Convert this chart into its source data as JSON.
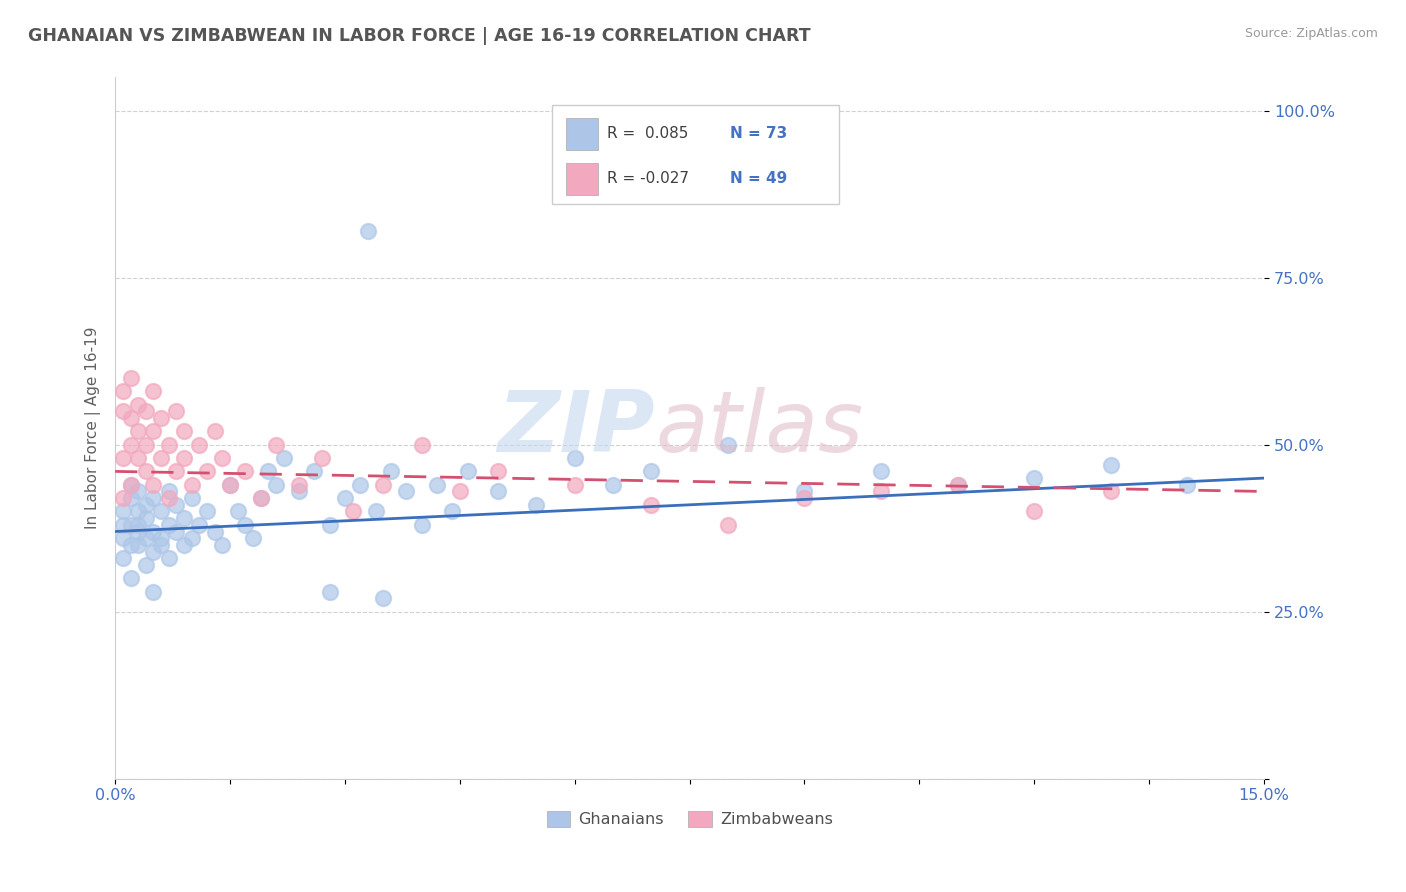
{
  "title": "GHANAIAN VS ZIMBABWEAN IN LABOR FORCE | AGE 16-19 CORRELATION CHART",
  "source": "Source: ZipAtlas.com",
  "ylabel": "In Labor Force | Age 16-19",
  "xlim": [
    0.0,
    0.15
  ],
  "ylim": [
    0.0,
    1.05
  ],
  "xtick_vals": [
    0.0,
    0.015,
    0.03,
    0.045,
    0.06,
    0.075,
    0.09,
    0.105,
    0.12,
    0.135,
    0.15
  ],
  "xticklabels": [
    "0.0%",
    "",
    "",
    "",
    "",
    "",
    "",
    "",
    "",
    "",
    "15.0%"
  ],
  "ytick_vals": [
    0.0,
    0.25,
    0.5,
    0.75,
    1.0
  ],
  "yticklabels": [
    "",
    "25.0%",
    "50.0%",
    "75.0%",
    "100.0%"
  ],
  "ghanaian_color": "#adc6e8",
  "zimbabwean_color": "#f2a8be",
  "ghanaian_line_color": "#3a6fbd",
  "zimbabwean_line_color": "#d45070",
  "legend_R1": "R =  0.085",
  "legend_N1": "N = 73",
  "legend_R2": "R = -0.027",
  "legend_N2": "N = 49",
  "title_color": "#555555",
  "tick_color": "#4472c4",
  "grid_color": "#cccccc",
  "background_color": "#ffffff",
  "ghanaian_x": [
    0.001,
    0.001,
    0.001,
    0.001,
    0.002,
    0.002,
    0.002,
    0.002,
    0.002,
    0.003,
    0.003,
    0.003,
    0.003,
    0.003,
    0.004,
    0.004,
    0.004,
    0.004,
    0.005,
    0.005,
    0.005,
    0.005,
    0.006,
    0.006,
    0.006,
    0.007,
    0.007,
    0.007,
    0.008,
    0.008,
    0.009,
    0.009,
    0.01,
    0.01,
    0.011,
    0.012,
    0.013,
    0.014,
    0.015,
    0.016,
    0.017,
    0.018,
    0.019,
    0.02,
    0.021,
    0.022,
    0.024,
    0.026,
    0.028,
    0.03,
    0.032,
    0.034,
    0.036,
    0.038,
    0.04,
    0.042,
    0.044,
    0.046,
    0.05,
    0.055,
    0.06,
    0.065,
    0.07,
    0.08,
    0.09,
    0.1,
    0.11,
    0.12,
    0.13,
    0.14,
    0.035,
    0.028,
    0.033
  ],
  "ghanaian_y": [
    0.36,
    0.4,
    0.38,
    0.33,
    0.35,
    0.42,
    0.38,
    0.3,
    0.44,
    0.37,
    0.4,
    0.35,
    0.43,
    0.38,
    0.32,
    0.36,
    0.41,
    0.39,
    0.34,
    0.37,
    0.42,
    0.28,
    0.36,
    0.4,
    0.35,
    0.38,
    0.43,
    0.33,
    0.37,
    0.41,
    0.35,
    0.39,
    0.36,
    0.42,
    0.38,
    0.4,
    0.37,
    0.35,
    0.44,
    0.4,
    0.38,
    0.36,
    0.42,
    0.46,
    0.44,
    0.48,
    0.43,
    0.46,
    0.38,
    0.42,
    0.44,
    0.4,
    0.46,
    0.43,
    0.38,
    0.44,
    0.4,
    0.46,
    0.43,
    0.41,
    0.48,
    0.44,
    0.46,
    0.5,
    0.43,
    0.46,
    0.44,
    0.45,
    0.47,
    0.44,
    0.27,
    0.28,
    0.82
  ],
  "zimbabwean_x": [
    0.001,
    0.001,
    0.001,
    0.001,
    0.002,
    0.002,
    0.002,
    0.002,
    0.003,
    0.003,
    0.003,
    0.004,
    0.004,
    0.004,
    0.005,
    0.005,
    0.005,
    0.006,
    0.006,
    0.007,
    0.007,
    0.008,
    0.008,
    0.009,
    0.009,
    0.01,
    0.011,
    0.012,
    0.013,
    0.014,
    0.015,
    0.017,
    0.019,
    0.021,
    0.024,
    0.027,
    0.031,
    0.035,
    0.04,
    0.045,
    0.05,
    0.06,
    0.07,
    0.08,
    0.09,
    0.1,
    0.11,
    0.12,
    0.13
  ],
  "zimbabwean_y": [
    0.42,
    0.48,
    0.55,
    0.58,
    0.5,
    0.54,
    0.44,
    0.6,
    0.56,
    0.48,
    0.52,
    0.46,
    0.55,
    0.5,
    0.44,
    0.58,
    0.52,
    0.48,
    0.54,
    0.5,
    0.42,
    0.55,
    0.46,
    0.52,
    0.48,
    0.44,
    0.5,
    0.46,
    0.52,
    0.48,
    0.44,
    0.46,
    0.42,
    0.5,
    0.44,
    0.48,
    0.4,
    0.44,
    0.5,
    0.43,
    0.46,
    0.44,
    0.41,
    0.38,
    0.42,
    0.43,
    0.44,
    0.4,
    0.43
  ]
}
